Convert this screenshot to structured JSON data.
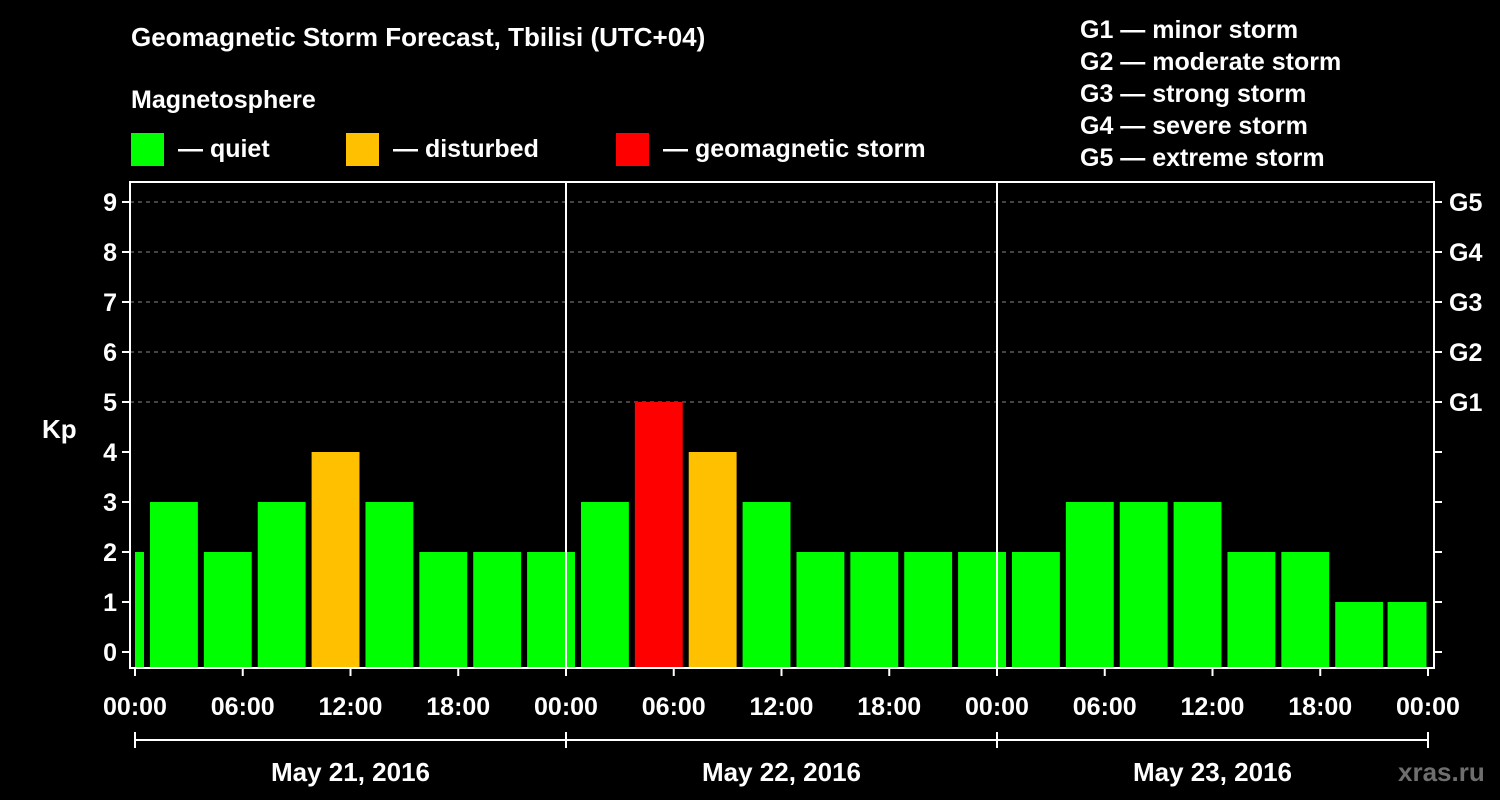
{
  "header": {
    "title": "Geomagnetic Storm Forecast, Tbilisi (UTC+04)",
    "subtitle": "Magnetosphere"
  },
  "legend": [
    {
      "label": "— quiet",
      "color": "#00ff00"
    },
    {
      "label": "— disturbed",
      "color": "#ffc000"
    },
    {
      "label": "— geomagnetic storm",
      "color": "#ff0000"
    }
  ],
  "storm_scale": [
    "G1 — minor storm",
    "G2 — moderate storm",
    "G3 — strong storm",
    "G4 — severe storm",
    "G5 — extreme storm"
  ],
  "watermark": "xras.ru",
  "chart_data": {
    "type": "bar",
    "ylabel": "Kp",
    "ylim": [
      0,
      9
    ],
    "y_ticks": [
      0,
      1,
      2,
      3,
      4,
      5,
      6,
      7,
      8,
      9
    ],
    "right_axis_ticks": [
      {
        "value": 5,
        "label": "G1"
      },
      {
        "value": 6,
        "label": "G2"
      },
      {
        "value": 7,
        "label": "G3"
      },
      {
        "value": 8,
        "label": "G4"
      },
      {
        "value": 9,
        "label": "G5"
      }
    ],
    "x_tick_labels": [
      "00:00",
      "06:00",
      "12:00",
      "18:00",
      "00:00",
      "06:00",
      "12:00",
      "18:00",
      "00:00",
      "06:00",
      "12:00",
      "18:00",
      "00:00"
    ],
    "days": [
      "May 21, 2016",
      "May 22, 2016",
      "May 23, 2016"
    ],
    "grid": true,
    "colors": {
      "quiet": "#00ff00",
      "disturbed": "#ffc000",
      "storm": "#ff0000"
    },
    "bars": [
      {
        "start_hour": 0,
        "end_hour": 0.667,
        "value": 2,
        "level": "quiet"
      },
      {
        "start_hour": 0.667,
        "end_hour": 3.667,
        "value": 3,
        "level": "quiet"
      },
      {
        "start_hour": 3.667,
        "end_hour": 6.667,
        "value": 2,
        "level": "quiet"
      },
      {
        "start_hour": 6.667,
        "end_hour": 9.667,
        "value": 3,
        "level": "quiet"
      },
      {
        "start_hour": 9.667,
        "end_hour": 12.667,
        "value": 4,
        "level": "disturbed"
      },
      {
        "start_hour": 12.667,
        "end_hour": 15.667,
        "value": 3,
        "level": "quiet"
      },
      {
        "start_hour": 15.667,
        "end_hour": 18.667,
        "value": 2,
        "level": "quiet"
      },
      {
        "start_hour": 18.667,
        "end_hour": 21.667,
        "value": 2,
        "level": "quiet"
      },
      {
        "start_hour": 21.667,
        "end_hour": 24.667,
        "value": 2,
        "level": "quiet"
      },
      {
        "start_hour": 24.667,
        "end_hour": 27.667,
        "value": 3,
        "level": "quiet"
      },
      {
        "start_hour": 27.667,
        "end_hour": 30.667,
        "value": 5,
        "level": "storm"
      },
      {
        "start_hour": 30.667,
        "end_hour": 33.667,
        "value": 4,
        "level": "disturbed"
      },
      {
        "start_hour": 33.667,
        "end_hour": 36.667,
        "value": 3,
        "level": "quiet"
      },
      {
        "start_hour": 36.667,
        "end_hour": 39.667,
        "value": 2,
        "level": "quiet"
      },
      {
        "start_hour": 39.667,
        "end_hour": 42.667,
        "value": 2,
        "level": "quiet"
      },
      {
        "start_hour": 42.667,
        "end_hour": 45.667,
        "value": 2,
        "level": "quiet"
      },
      {
        "start_hour": 45.667,
        "end_hour": 48.667,
        "value": 2,
        "level": "quiet"
      },
      {
        "start_hour": 48.667,
        "end_hour": 51.667,
        "value": 2,
        "level": "quiet"
      },
      {
        "start_hour": 51.667,
        "end_hour": 54.667,
        "value": 3,
        "level": "quiet"
      },
      {
        "start_hour": 54.667,
        "end_hour": 57.667,
        "value": 3,
        "level": "quiet"
      },
      {
        "start_hour": 57.667,
        "end_hour": 60.667,
        "value": 3,
        "level": "quiet"
      },
      {
        "start_hour": 60.667,
        "end_hour": 63.667,
        "value": 2,
        "level": "quiet"
      },
      {
        "start_hour": 63.667,
        "end_hour": 66.667,
        "value": 2,
        "level": "quiet"
      },
      {
        "start_hour": 66.667,
        "end_hour": 69.667,
        "value": 1,
        "level": "quiet"
      },
      {
        "start_hour": 69.667,
        "end_hour": 72,
        "value": 1,
        "level": "quiet"
      }
    ]
  }
}
